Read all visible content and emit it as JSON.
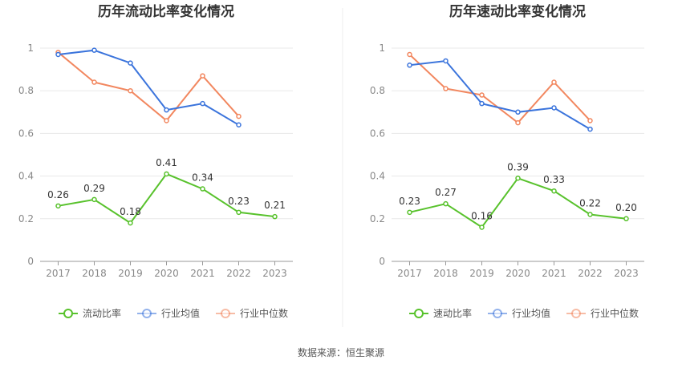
{
  "source_text": "数据来源：恒生聚源",
  "colors": {
    "green": "#58c22c",
    "blue": "#3b74dc",
    "orange": "#f2875f",
    "grid": "#e8e8e8",
    "axis": "#999999"
  },
  "chart_data": [
    {
      "type": "line",
      "title": "历年流动比率变化情况",
      "categories": [
        "2017",
        "2018",
        "2019",
        "2020",
        "2021",
        "2022",
        "2023"
      ],
      "ylim": [
        0,
        1
      ],
      "yticks": [
        "0",
        "0.2",
        "0.4",
        "0.6",
        "0.8",
        "1"
      ],
      "grid": true,
      "legend_position": "bottom",
      "series": [
        {
          "name": "流动比率",
          "color": "#58c22c",
          "values": [
            0.26,
            0.29,
            0.18,
            0.41,
            0.34,
            0.23,
            0.21
          ],
          "labels": [
            "0.26",
            "0.29",
            "0.18",
            "0.41",
            "0.34",
            "0.23",
            "0.21"
          ],
          "show_labels": true
        },
        {
          "name": "行业均值",
          "color": "#3b74dc",
          "values": [
            0.97,
            0.99,
            0.93,
            0.71,
            0.74,
            0.64,
            null
          ],
          "show_labels": false
        },
        {
          "name": "行业中位数",
          "color": "#f2875f",
          "values": [
            0.98,
            0.84,
            0.8,
            0.66,
            0.87,
            0.68,
            null
          ],
          "show_labels": false
        }
      ]
    },
    {
      "type": "line",
      "title": "历年速动比率变化情况",
      "categories": [
        "2017",
        "2018",
        "2019",
        "2020",
        "2021",
        "2022",
        "2023"
      ],
      "ylim": [
        0,
        1
      ],
      "yticks": [
        "0",
        "0.2",
        "0.4",
        "0.6",
        "0.8",
        "1"
      ],
      "grid": true,
      "legend_position": "bottom",
      "series": [
        {
          "name": "速动比率",
          "color": "#58c22c",
          "values": [
            0.23,
            0.27,
            0.16,
            0.39,
            0.33,
            0.22,
            0.2
          ],
          "labels": [
            "0.23",
            "0.27",
            "0.16",
            "0.39",
            "0.33",
            "0.22",
            "0.20"
          ],
          "show_labels": true
        },
        {
          "name": "行业均值",
          "color": "#3b74dc",
          "values": [
            0.92,
            0.94,
            0.74,
            0.7,
            0.72,
            0.62,
            null
          ],
          "show_labels": false
        },
        {
          "name": "行业中位数",
          "color": "#f2875f",
          "values": [
            0.97,
            0.81,
            0.78,
            0.65,
            0.84,
            0.66,
            null
          ],
          "show_labels": false
        }
      ]
    }
  ]
}
